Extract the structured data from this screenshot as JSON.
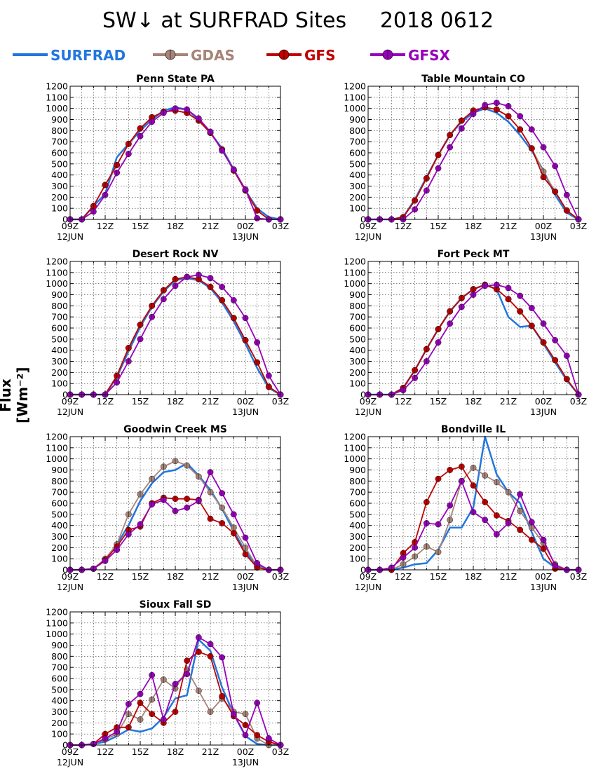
{
  "title": "SW↓ at SURFRAD Sites     2018 0612",
  "ylabel": "Flux [Wm⁻²]",
  "colors": {
    "SURFRAD": "#2277dd",
    "GDAS": "#a68478",
    "GFS": "#c00000",
    "GFSX": "#9900bb"
  },
  "legend": [
    {
      "name": "SURFRAD",
      "color": "#2277dd",
      "marker": false
    },
    {
      "name": "GDAS",
      "color": "#a68478",
      "marker": true
    },
    {
      "name": "GFS",
      "color": "#c00000",
      "marker": true
    },
    {
      "name": "GFSX",
      "color": "#9900bb",
      "marker": true
    }
  ],
  "chart_data": [
    {
      "type": "line",
      "title": "Penn State PA",
      "x": [
        "09Z",
        "10Z",
        "11Z",
        "12Z",
        "13Z",
        "14Z",
        "15Z",
        "16Z",
        "17Z",
        "18Z",
        "19Z",
        "20Z",
        "21Z",
        "22Z",
        "23Z",
        "00Z",
        "01Z",
        "02Z",
        "03Z"
      ],
      "xticks": [
        "09Z",
        "12Z",
        "15Z",
        "18Z",
        "21Z",
        "00Z",
        "03Z"
      ],
      "xticks_sub": {
        "09Z": "12JUN",
        "00Z": "13JUN"
      },
      "ylim": [
        0,
        1200
      ],
      "yticks": [
        0,
        100,
        200,
        300,
        400,
        500,
        600,
        700,
        800,
        900,
        1000,
        1100,
        1200
      ],
      "series": [
        {
          "name": "SURFRAD",
          "values": [
            0,
            0,
            120,
            230,
            560,
            680,
            800,
            900,
            980,
            1010,
            990,
            900,
            780,
            640,
            450,
            260,
            100,
            20,
            0
          ]
        },
        {
          "name": "GDAS",
          "values": [
            0,
            0,
            120,
            310,
            490,
            680,
            820,
            920,
            970,
            980,
            960,
            890,
            780,
            630,
            440,
            260,
            80,
            0,
            0
          ]
        },
        {
          "name": "GFS",
          "values": [
            0,
            0,
            120,
            310,
            490,
            680,
            820,
            920,
            970,
            980,
            960,
            890,
            780,
            630,
            440,
            260,
            80,
            0,
            0
          ]
        },
        {
          "name": "GFSX",
          "values": [
            0,
            0,
            70,
            220,
            420,
            590,
            750,
            880,
            960,
            1000,
            990,
            910,
            790,
            620,
            450,
            270,
            10,
            0,
            0
          ]
        }
      ]
    },
    {
      "type": "line",
      "title": "Table Mountain CO",
      "x": [
        "09Z",
        "10Z",
        "11Z",
        "12Z",
        "13Z",
        "14Z",
        "15Z",
        "16Z",
        "17Z",
        "18Z",
        "19Z",
        "20Z",
        "21Z",
        "22Z",
        "23Z",
        "00Z",
        "01Z",
        "02Z",
        "03Z"
      ],
      "xticks": [
        "09Z",
        "12Z",
        "15Z",
        "18Z",
        "21Z",
        "00Z",
        "03Z"
      ],
      "xticks_sub": {
        "09Z": "12JUN",
        "00Z": "13JUN"
      },
      "ylim": [
        0,
        1200
      ],
      "yticks": [
        0,
        100,
        200,
        300,
        400,
        500,
        600,
        700,
        800,
        900,
        1000,
        1100,
        1200
      ],
      "series": [
        {
          "name": "SURFRAD",
          "values": [
            0,
            0,
            0,
            20,
            180,
            380,
            580,
            760,
            880,
            960,
            1000,
            960,
            880,
            760,
            620,
            440,
            220,
            60,
            0
          ]
        },
        {
          "name": "GDAS",
          "values": [
            0,
            0,
            0,
            20,
            170,
            370,
            580,
            760,
            890,
            980,
            1010,
            990,
            930,
            810,
            640,
            430,
            250,
            80,
            0
          ]
        },
        {
          "name": "GFS",
          "values": [
            0,
            0,
            0,
            20,
            170,
            370,
            580,
            760,
            890,
            980,
            1010,
            990,
            930,
            810,
            640,
            380,
            250,
            80,
            0
          ]
        },
        {
          "name": "GFSX",
          "values": [
            0,
            0,
            0,
            0,
            90,
            260,
            460,
            650,
            820,
            950,
            1030,
            1050,
            1020,
            930,
            810,
            650,
            480,
            220,
            0
          ]
        }
      ]
    },
    {
      "type": "line",
      "title": "Desert Rock NV",
      "x": [
        "09Z",
        "10Z",
        "11Z",
        "12Z",
        "13Z",
        "14Z",
        "15Z",
        "16Z",
        "17Z",
        "18Z",
        "19Z",
        "20Z",
        "21Z",
        "22Z",
        "23Z",
        "00Z",
        "01Z",
        "02Z",
        "03Z"
      ],
      "xticks": [
        "09Z",
        "12Z",
        "15Z",
        "18Z",
        "21Z",
        "00Z",
        "03Z"
      ],
      "xticks_sub": {
        "09Z": "12JUN",
        "00Z": "13JUN"
      },
      "ylim": [
        0,
        1200
      ],
      "yticks": [
        0,
        100,
        200,
        300,
        400,
        500,
        600,
        700,
        800,
        900,
        1000,
        1100,
        1200
      ],
      "series": [
        {
          "name": "SURFRAD",
          "values": [
            0,
            0,
            0,
            0,
            160,
            390,
            610,
            790,
            930,
            1030,
            1050,
            1030,
            960,
            830,
            660,
            460,
            240,
            60,
            0
          ]
        },
        {
          "name": "GDAS",
          "values": [
            0,
            0,
            0,
            0,
            170,
            420,
            630,
            800,
            940,
            1040,
            1060,
            1040,
            970,
            850,
            690,
            490,
            290,
            70,
            0
          ]
        },
        {
          "name": "GFS",
          "values": [
            0,
            0,
            0,
            0,
            170,
            420,
            630,
            800,
            940,
            1040,
            1060,
            1040,
            970,
            850,
            690,
            490,
            290,
            70,
            0
          ]
        },
        {
          "name": "GFSX",
          "values": [
            0,
            0,
            0,
            0,
            110,
            300,
            500,
            700,
            860,
            980,
            1060,
            1080,
            1050,
            970,
            850,
            690,
            470,
            170,
            0
          ]
        }
      ]
    },
    {
      "type": "line",
      "title": "Fort Peck MT",
      "x": [
        "09Z",
        "10Z",
        "11Z",
        "12Z",
        "13Z",
        "14Z",
        "15Z",
        "16Z",
        "17Z",
        "18Z",
        "19Z",
        "20Z",
        "21Z",
        "22Z",
        "23Z",
        "00Z",
        "01Z",
        "02Z",
        "03Z"
      ],
      "xticks": [
        "09Z",
        "12Z",
        "15Z",
        "18Z",
        "21Z",
        "00Z",
        "03Z"
      ],
      "xticks_sub": {
        "09Z": "12JUN",
        "00Z": "13JUN"
      },
      "ylim": [
        0,
        1200
      ],
      "yticks": [
        0,
        100,
        200,
        300,
        400,
        500,
        600,
        700,
        800,
        900,
        1000,
        1100,
        1200
      ],
      "series": [
        {
          "name": "SURFRAD",
          "values": [
            0,
            0,
            0,
            60,
            220,
            410,
            590,
            750,
            870,
            950,
            990,
            950,
            700,
            610,
            620,
            460,
            290,
            130,
            0
          ]
        },
        {
          "name": "GDAS",
          "values": [
            0,
            0,
            0,
            60,
            220,
            410,
            590,
            750,
            870,
            950,
            990,
            950,
            860,
            750,
            620,
            470,
            310,
            140,
            0
          ]
        },
        {
          "name": "GFS",
          "values": [
            0,
            0,
            0,
            60,
            220,
            410,
            590,
            750,
            870,
            950,
            990,
            950,
            860,
            750,
            620,
            470,
            310,
            140,
            0
          ]
        },
        {
          "name": "GFSX",
          "values": [
            0,
            0,
            0,
            40,
            150,
            300,
            470,
            640,
            790,
            900,
            980,
            990,
            960,
            890,
            780,
            640,
            490,
            350,
            0
          ]
        }
      ]
    },
    {
      "type": "line",
      "title": "Goodwin Creek MS",
      "x": [
        "09Z",
        "10Z",
        "11Z",
        "12Z",
        "13Z",
        "14Z",
        "15Z",
        "16Z",
        "17Z",
        "18Z",
        "19Z",
        "20Z",
        "21Z",
        "22Z",
        "23Z",
        "00Z",
        "01Z",
        "02Z",
        "03Z"
      ],
      "xticks": [
        "09Z",
        "12Z",
        "15Z",
        "18Z",
        "21Z",
        "00Z",
        "03Z"
      ],
      "xticks_sub": {
        "09Z": "12JUN",
        "00Z": "13JUN"
      },
      "ylim": [
        0,
        1200
      ],
      "yticks": [
        0,
        100,
        200,
        300,
        400,
        500,
        600,
        700,
        800,
        900,
        1000,
        1100,
        1200
      ],
      "series": [
        {
          "name": "SURFRAD",
          "values": [
            0,
            0,
            10,
            90,
            230,
            400,
            620,
            780,
            880,
            900,
            960,
            850,
            720,
            550,
            350,
            160,
            40,
            0,
            0
          ]
        },
        {
          "name": "GDAS",
          "values": [
            0,
            0,
            10,
            100,
            230,
            500,
            680,
            820,
            930,
            980,
            940,
            840,
            700,
            560,
            380,
            200,
            30,
            0,
            0
          ]
        },
        {
          "name": "GFS",
          "values": [
            0,
            0,
            10,
            90,
            210,
            360,
            390,
            600,
            650,
            640,
            640,
            630,
            460,
            420,
            330,
            140,
            20,
            0,
            0
          ]
        },
        {
          "name": "GFSX",
          "values": [
            0,
            0,
            10,
            80,
            180,
            320,
            410,
            590,
            630,
            530,
            560,
            620,
            880,
            690,
            500,
            290,
            60,
            0,
            0
          ]
        }
      ]
    },
    {
      "type": "line",
      "title": "Bondville IL",
      "x": [
        "09Z",
        "10Z",
        "11Z",
        "12Z",
        "13Z",
        "14Z",
        "15Z",
        "16Z",
        "17Z",
        "18Z",
        "19Z",
        "20Z",
        "21Z",
        "22Z",
        "23Z",
        "00Z",
        "01Z",
        "02Z",
        "03Z"
      ],
      "xticks": [
        "09Z",
        "12Z",
        "15Z",
        "18Z",
        "21Z",
        "00Z",
        "03Z"
      ],
      "xticks_sub": {
        "09Z": "12JUN",
        "00Z": "13JUN"
      },
      "ylim": [
        0,
        1200
      ],
      "yticks": [
        0,
        100,
        200,
        300,
        400,
        500,
        600,
        700,
        800,
        900,
        1000,
        1100,
        1200
      ],
      "series": [
        {
          "name": "SURFRAD",
          "values": [
            0,
            0,
            0,
            20,
            50,
            60,
            180,
            380,
            380,
            560,
            1200,
            860,
            700,
            600,
            340,
            100,
            20,
            0,
            0
          ]
        },
        {
          "name": "GDAS",
          "values": [
            0,
            0,
            0,
            50,
            120,
            210,
            160,
            450,
            800,
            920,
            850,
            790,
            700,
            530,
            380,
            240,
            50,
            0,
            0
          ]
        },
        {
          "name": "GFS",
          "values": [
            0,
            0,
            0,
            150,
            250,
            610,
            820,
            900,
            930,
            760,
            610,
            490,
            440,
            360,
            270,
            190,
            10,
            0,
            0
          ]
        },
        {
          "name": "GFSX",
          "values": [
            0,
            0,
            20,
            110,
            200,
            420,
            410,
            580,
            800,
            520,
            450,
            320,
            420,
            680,
            430,
            270,
            40,
            0,
            0
          ]
        }
      ]
    },
    {
      "type": "line",
      "title": "Sioux Fall SD",
      "x": [
        "09Z",
        "10Z",
        "11Z",
        "12Z",
        "13Z",
        "14Z",
        "15Z",
        "16Z",
        "17Z",
        "18Z",
        "19Z",
        "20Z",
        "21Z",
        "22Z",
        "23Z",
        "00Z",
        "01Z",
        "02Z",
        "03Z"
      ],
      "xticks": [
        "09Z",
        "12Z",
        "15Z",
        "18Z",
        "21Z",
        "00Z",
        "03Z"
      ],
      "xticks_sub": {
        "09Z": "12JUN",
        "00Z": "13JUN"
      },
      "ylim": [
        0,
        1200
      ],
      "yticks": [
        0,
        100,
        200,
        300,
        400,
        500,
        600,
        700,
        800,
        900,
        1000,
        1100,
        1200
      ],
      "series": [
        {
          "name": "SURFRAD",
          "values": [
            0,
            0,
            10,
            30,
            80,
            140,
            120,
            150,
            250,
            420,
            450,
            950,
            850,
            520,
            280,
            80,
            10,
            0,
            0
          ]
        },
        {
          "name": "GDAS",
          "values": [
            0,
            0,
            10,
            50,
            100,
            280,
            230,
            410,
            590,
            510,
            680,
            490,
            300,
            420,
            300,
            280,
            60,
            0,
            0
          ]
        },
        {
          "name": "GFS",
          "values": [
            0,
            0,
            10,
            100,
            160,
            160,
            380,
            280,
            200,
            300,
            760,
            840,
            800,
            440,
            260,
            180,
            90,
            30,
            0
          ]
        },
        {
          "name": "GFSX",
          "values": [
            0,
            0,
            10,
            60,
            120,
            370,
            460,
            630,
            230,
            550,
            640,
            970,
            910,
            790,
            280,
            90,
            380,
            60,
            0
          ]
        }
      ]
    }
  ]
}
